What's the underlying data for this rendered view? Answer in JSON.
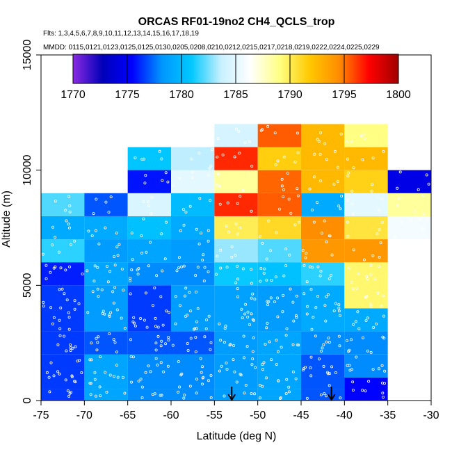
{
  "chart_data": {
    "type": "heatmap",
    "title": "ORCAS RF01-19no2 CH4_QCLS_trop",
    "subtitle_flights": "Flts: 1,3,4,5,6,7,8,9,10,11,12,13,14,15,16,17,18,19",
    "subtitle_dates": "MMDD: 0115,0121,0123,0125,0125,0130,0205,0208,0210,0212,0215,0217,0218,0219,0222,0224,0225,0229",
    "xlabel": "Latitude (deg N)",
    "ylabel": "Altitude (m)",
    "xlim": [
      -75,
      -30
    ],
    "ylim": [
      0,
      15000
    ],
    "x_ticks": [
      -75,
      -70,
      -65,
      -60,
      -55,
      -50,
      -45,
      -40,
      -35,
      -30
    ],
    "x_tick_labels": [
      "-75",
      "-70",
      "-65",
      "-60",
      "-55",
      "-50",
      "-45",
      "-40",
      "-35",
      "-30"
    ],
    "y_ticks": [
      0,
      5000,
      10000,
      15000
    ],
    "y_tick_labels": [
      "0",
      "5000",
      "10000",
      "15000"
    ],
    "colorbar": {
      "min": 1770,
      "max": 1800,
      "ticks": [
        1770,
        1775,
        1780,
        1785,
        1790,
        1795,
        1800
      ],
      "tick_labels": [
        "1770",
        "1775",
        "1780",
        "1785",
        "1790",
        "1795",
        "1800"
      ],
      "colors": [
        "#8A2BE2",
        "#0000B8",
        "#0000FF",
        "#0096FF",
        "#00C8FF",
        "#C8F0FF",
        "#FFFFFF",
        "#FFFF80",
        "#FFC800",
        "#FF8C00",
        "#FF0000",
        "#A00000"
      ]
    },
    "bin_size": {
      "lat": 5,
      "alt": 500
    },
    "note": "cells: [lat_start, alt_start_m, alt_end_m, CH4_ppb]",
    "cells": [
      [
        -75,
        0,
        500,
        1776.5
      ],
      [
        -75,
        500,
        2000,
        1776.5
      ],
      [
        -75,
        2000,
        3000,
        1776.5
      ],
      [
        -75,
        3000,
        5000,
        1776.5
      ],
      [
        -75,
        5000,
        6000,
        1776.0
      ],
      [
        -75,
        6000,
        7000,
        1781.5
      ],
      [
        -75,
        7000,
        8000,
        1779.3
      ],
      [
        -75,
        8000,
        9000,
        1782.0
      ],
      [
        -70,
        0,
        500,
        1779.0
      ],
      [
        -70,
        500,
        2000,
        1779.0
      ],
      [
        -70,
        2000,
        3000,
        1777.0
      ],
      [
        -70,
        3000,
        5000,
        1778.5
      ],
      [
        -70,
        5000,
        6000,
        1779.0
      ],
      [
        -70,
        6000,
        7000,
        1778.5
      ],
      [
        -70,
        7000,
        8000,
        1779.3
      ],
      [
        -70,
        8000,
        9000,
        1777.0
      ],
      [
        -65,
        0,
        500,
        1778.0
      ],
      [
        -65,
        500,
        2000,
        1778.0
      ],
      [
        -65,
        2000,
        3000,
        1777.0
      ],
      [
        -65,
        3000,
        5000,
        1776.5
      ],
      [
        -65,
        5000,
        6000,
        1778.0
      ],
      [
        -65,
        6000,
        7000,
        1779.0
      ],
      [
        -65,
        7000,
        8000,
        1780.5
      ],
      [
        -65,
        8000,
        9000,
        1784.5
      ],
      [
        -65,
        10000,
        11000,
        1780.8
      ],
      [
        -65,
        9000,
        10000,
        1775.8
      ],
      [
        -60,
        0,
        500,
        1778.0
      ],
      [
        -60,
        500,
        2000,
        1778.0
      ],
      [
        -60,
        2000,
        3000,
        1777.0
      ],
      [
        -60,
        3000,
        5000,
        1778.5
      ],
      [
        -60,
        5000,
        6000,
        1778.0
      ],
      [
        -60,
        6000,
        7000,
        1778.5
      ],
      [
        -60,
        7000,
        8000,
        1779.3
      ],
      [
        -60,
        8000,
        9000,
        1780.2
      ],
      [
        -60,
        9000,
        10000,
        1785.0
      ],
      [
        -60,
        10000,
        11000,
        1783.5
      ],
      [
        -55,
        0,
        500,
        1778.5
      ],
      [
        -55,
        500,
        2000,
        1778.5
      ],
      [
        -55,
        2000,
        3000,
        1778.5
      ],
      [
        -55,
        3000,
        5000,
        1778.8
      ],
      [
        -55,
        5000,
        6000,
        1781.0
      ],
      [
        -55,
        6000,
        7000,
        1783.0
      ],
      [
        -55,
        7000,
        8000,
        1790.0
      ],
      [
        -55,
        8000,
        9000,
        1796.5
      ],
      [
        -55,
        9000,
        10000,
        1788.5
      ],
      [
        -55,
        10000,
        11000,
        1796.5
      ],
      [
        -55,
        11000,
        12000,
        1784.3
      ],
      [
        -50,
        0,
        500,
        1779.0
      ],
      [
        -50,
        500,
        2000,
        1779.0
      ],
      [
        -50,
        2000,
        3000,
        1779.0
      ],
      [
        -50,
        3000,
        5000,
        1778.5
      ],
      [
        -50,
        5000,
        6000,
        1780.5
      ],
      [
        -50,
        6000,
        7000,
        1782.0
      ],
      [
        -50,
        7000,
        8000,
        1791.0
      ],
      [
        -50,
        8000,
        9000,
        1795.5
      ],
      [
        -50,
        9000,
        10000,
        1795.3
      ],
      [
        -50,
        10000,
        11000,
        1791.5
      ],
      [
        -50,
        11000,
        12000,
        1795.5
      ],
      [
        -45,
        0,
        500,
        1777.0
      ],
      [
        -45,
        500,
        2000,
        1777.0
      ],
      [
        -45,
        2000,
        3000,
        1778.0
      ],
      [
        -45,
        3000,
        5000,
        1779.3
      ],
      [
        -45,
        5000,
        6000,
        1781.5
      ],
      [
        -45,
        6000,
        7000,
        1794.0
      ],
      [
        -45,
        7000,
        8000,
        1794.5
      ],
      [
        -45,
        8000,
        9000,
        1779.3
      ],
      [
        -45,
        9000,
        10000,
        1792.5
      ],
      [
        -45,
        10000,
        11000,
        1792.5
      ],
      [
        -45,
        11000,
        12000,
        1792.5
      ],
      [
        -40,
        0,
        1000,
        1775.5
      ],
      [
        -40,
        1000,
        2000,
        1778.0
      ],
      [
        -40,
        2000,
        3000,
        1778.0
      ],
      [
        -40,
        3000,
        4000,
        1779.3
      ],
      [
        -40,
        4000,
        6000,
        1789.5
      ],
      [
        -40,
        6000,
        7000,
        1794.0
      ],
      [
        -40,
        7000,
        8000,
        1790.5
      ],
      [
        -40,
        8000,
        9000,
        1785.0
      ],
      [
        -40,
        9000,
        10000,
        1791.3
      ],
      [
        -40,
        10000,
        11000,
        1792.5
      ],
      [
        -40,
        11000,
        12000,
        1789.0
      ],
      [
        -35,
        8000,
        9000,
        1788.5
      ],
      [
        -35,
        7000,
        8000,
        1785.8
      ],
      [
        -35,
        9000,
        10000,
        1774.5
      ]
    ],
    "markers": [
      {
        "lat": -53.0,
        "label": "down-arrow"
      },
      {
        "lat": -41.5,
        "label": "down-arrow"
      }
    ]
  },
  "colors": {
    "frame": "#000000",
    "sample_points": "#ffffff"
  }
}
